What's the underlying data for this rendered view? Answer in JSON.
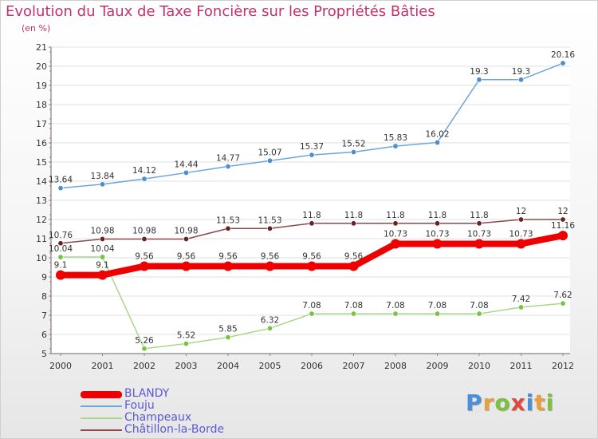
{
  "title": "Evolution du Taux de Taxe Foncière sur les Propriétés Bâties",
  "unit_label": "(en %)",
  "logo": {
    "text": "Proxiti",
    "letter_colors": [
      "#4a90d9",
      "#e8a03a",
      "#7cc242",
      "#e0483c",
      "#4a90d9",
      "#e8a03a",
      "#7cc242"
    ]
  },
  "chart_data": {
    "type": "line",
    "title": "Evolution du Taux de Taxe Foncière sur les Propriétés Bâties",
    "ylabel": "(en %)",
    "xlabel": "",
    "x": [
      "2000",
      "2001",
      "2002",
      "2003",
      "2004",
      "2005",
      "2006",
      "2007",
      "2008",
      "2009",
      "2010",
      "2011",
      "2012"
    ],
    "ylim": [
      5,
      21
    ],
    "yticks": [
      5,
      6,
      7,
      8,
      9,
      10,
      11,
      12,
      13,
      14,
      15,
      16,
      17,
      18,
      19,
      20,
      21
    ],
    "grid": "horizontal",
    "legend_position": "bottom-left",
    "series": [
      {
        "name": "Fouju",
        "color": "#6fa5d8",
        "marker_color": "#4d8ecf",
        "values": [
          13.64,
          13.84,
          14.12,
          14.44,
          14.77,
          15.07,
          15.37,
          15.52,
          15.83,
          16.02,
          19.3,
          19.3,
          20.16
        ],
        "labels": [
          "13.64",
          "13.84",
          "14.12",
          "14.44",
          "14.77",
          "15.07",
          "15.37",
          "15.52",
          "15.83",
          "16.02",
          "19.3",
          "19.3",
          "20.16"
        ]
      },
      {
        "name": "Châtillon-la-Borde",
        "color": "#8a4a4a",
        "marker_color": "#6b2222",
        "values": [
          10.76,
          10.98,
          10.98,
          10.98,
          11.53,
          11.53,
          11.8,
          11.8,
          11.8,
          11.8,
          11.8,
          12,
          12
        ],
        "labels": [
          "10.76",
          "10.98",
          "10.98",
          "10.98",
          "11.53",
          "11.53",
          "11.8",
          "11.8",
          "11.8",
          "11.8",
          "11.8",
          "12",
          "12"
        ]
      },
      {
        "name": "Champeaux",
        "color": "#a8d888",
        "marker_color": "#7cc242",
        "values": [
          10.04,
          10.04,
          5.26,
          5.52,
          5.85,
          6.32,
          7.08,
          7.08,
          7.08,
          7.08,
          7.08,
          7.42,
          7.62
        ],
        "labels": [
          "10.04",
          "10.04",
          "5.26",
          "5.52",
          "5.85",
          "6.32",
          "7.08",
          "7.08",
          "7.08",
          "7.08",
          "7.08",
          "7.42",
          "7.62"
        ]
      },
      {
        "name": "BLANDY",
        "color": "#ee0000",
        "marker_color": "#ee0000",
        "values": [
          9.1,
          9.1,
          9.56,
          9.56,
          9.56,
          9.56,
          9.56,
          9.56,
          10.73,
          10.73,
          10.73,
          10.73,
          11.16
        ],
        "labels": [
          "9.1",
          "9.1",
          "9.56",
          "9.56",
          "9.56",
          "9.56",
          "9.56",
          "9.56",
          "10.73",
          "10.73",
          "10.73",
          "10.73",
          "11.16"
        ]
      }
    ],
    "legend": [
      {
        "name": "BLANDY",
        "color": "#ee0000",
        "thick": true
      },
      {
        "name": "Fouju",
        "color": "#6fa5d8",
        "thick": false
      },
      {
        "name": "Champeaux",
        "color": "#a8d888",
        "thick": false
      },
      {
        "name": "Châtillon-la-Borde",
        "color": "#8a4a4a",
        "thick": false
      }
    ]
  }
}
